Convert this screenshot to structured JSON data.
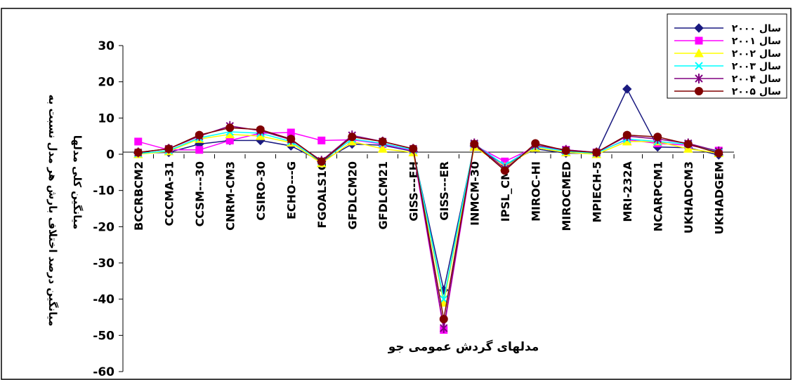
{
  "chart_data": {
    "type": "line",
    "title": "",
    "xlabel": "مدلهای گردش عمومی جو",
    "ylabel_line1": "میانگین درصد اختلاف بارش هر مدل نسبت به",
    "ylabel_line2": "میانگین کلی مدلها",
    "ylim": [
      -60,
      30
    ],
    "yticks": [
      30,
      20,
      10,
      0,
      -10,
      -20,
      -30,
      -40,
      -50,
      -60
    ],
    "ytick_labels": [
      "30",
      "20",
      "10",
      "0",
      "-10",
      "-20",
      "-30",
      "-40",
      "-50",
      "-60"
    ],
    "grid": false,
    "legend_position": "top-right",
    "categories": [
      "BCCRBCM2",
      "CCCMA-31",
      "CCSM---30",
      "CNRM-CM3",
      "CSIRO-30",
      "ECHO---G",
      "FGOALS1G",
      "GFDLCM20",
      "GFDLCM21",
      "GISS---EH",
      "GISS---ER",
      "INMCM-30",
      "IPSL_CM4",
      "MIROC-HI",
      "MIROCMED",
      "MPIECH-5",
      "MRI-232A",
      "NCARPCM1",
      "UKHADCM3",
      "UKHADGEM"
    ],
    "series": [
      {
        "name": "سال ۲۰۰۰",
        "color": "#1a1a80",
        "marker": "diamond",
        "values": [
          0.3,
          0.5,
          2.8,
          3.8,
          3.8,
          2.3,
          -2.0,
          2.8,
          2.5,
          0.8,
          -37.5,
          2.3,
          -3.0,
          1.5,
          0.3,
          0.2,
          18.0,
          2.0,
          1.8,
          -0.2
        ]
      },
      {
        "name": "سال ۲۰۰۱",
        "color": "#ff00ff",
        "marker": "square",
        "values": [
          3.5,
          1.2,
          1.2,
          3.8,
          5.8,
          6.0,
          3.8,
          4.0,
          2.8,
          1.0,
          -48.5,
          2.5,
          -2.0,
          2.0,
          1.2,
          0.5,
          4.0,
          3.0,
          2.5,
          1.0
        ]
      },
      {
        "name": "سال ۲۰۰۲",
        "color": "#ffff00",
        "marker": "triangle",
        "values": [
          0.0,
          0.8,
          4.2,
          5.5,
          5.0,
          3.2,
          -2.5,
          3.5,
          1.5,
          0.5,
          -41.0,
          2.0,
          -3.5,
          1.8,
          0.5,
          0.0,
          3.5,
          3.5,
          1.5,
          0.3
        ]
      },
      {
        "name": "سال ۲۰۰۳",
        "color": "#00ffff",
        "marker": "x",
        "values": [
          0.2,
          1.0,
          4.5,
          6.2,
          5.8,
          3.5,
          -2.0,
          4.2,
          3.0,
          1.2,
          -40.0,
          2.8,
          -3.0,
          2.2,
          0.8,
          0.3,
          4.2,
          3.5,
          2.8,
          0.5
        ]
      },
      {
        "name": "سال ۲۰۰۴",
        "color": "#800080",
        "marker": "star",
        "values": [
          0.5,
          1.5,
          5.0,
          7.8,
          6.5,
          4.0,
          -1.8,
          5.2,
          3.5,
          1.5,
          -48.0,
          3.0,
          -4.0,
          2.5,
          1.2,
          0.5,
          5.0,
          4.2,
          3.0,
          0.8
        ]
      },
      {
        "name": "سال ۲۰۰۵",
        "color": "#800000",
        "marker": "circle",
        "values": [
          0.5,
          1.5,
          5.3,
          7.3,
          6.8,
          4.2,
          -2.0,
          4.8,
          3.5,
          1.5,
          -45.5,
          2.8,
          -4.5,
          3.0,
          1.0,
          0.5,
          5.3,
          4.8,
          2.8,
          0.3
        ]
      }
    ]
  }
}
